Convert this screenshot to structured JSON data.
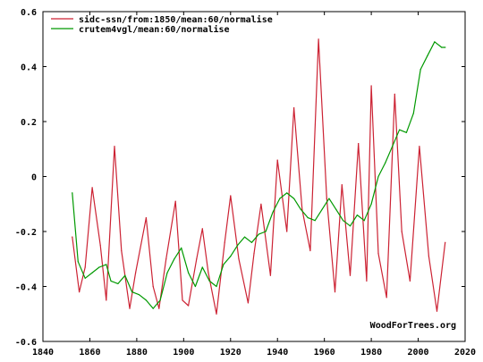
{
  "chart_data": {
    "type": "line",
    "title": "",
    "xlabel": "",
    "ylabel": "",
    "xlim": [
      1840,
      2020
    ],
    "ylim": [
      -0.6,
      0.6
    ],
    "x_ticks": [
      1840,
      1860,
      1880,
      1900,
      1920,
      1940,
      1960,
      1980,
      2000,
      2020
    ],
    "x_tick_labels": [
      "1840",
      "1860",
      "1880",
      "1900",
      "1920",
      "1940",
      "1960",
      "1980",
      "2000",
      "2020"
    ],
    "y_ticks": [
      -0.6,
      -0.4,
      -0.2,
      0,
      0.2,
      0.4,
      0.6
    ],
    "y_tick_labels": [
      "-0.6",
      "-0.4",
      "-0.2",
      "0",
      "0.2",
      "0.4",
      "0.6"
    ],
    "grid": false,
    "legend_position": "top-left",
    "credit": "WoodForTrees.org",
    "series": [
      {
        "name": "sidc-ssn/from:1850/mean:60/normalise",
        "color": "#cc2233",
        "x": [
          1852.5,
          1855.5,
          1858,
          1861,
          1864.5,
          1867,
          1870.5,
          1873.5,
          1877,
          1879.5,
          1884,
          1887,
          1889.5,
          1892.5,
          1896.5,
          1899.5,
          1902,
          1905.5,
          1908,
          1910.5,
          1914,
          1917.5,
          1920,
          1923.5,
          1927.5,
          1930,
          1933,
          1937,
          1940,
          1944,
          1947,
          1950.5,
          1954,
          1957.5,
          1961,
          1964.5,
          1967.5,
          1971,
          1974.5,
          1978,
          1980,
          1983,
          1986.5,
          1990,
          1993,
          1996.5,
          2000.5,
          2004.5,
          2008,
          2011.5
        ],
        "y": [
          -0.22,
          -0.42,
          -0.33,
          -0.04,
          -0.25,
          -0.45,
          0.11,
          -0.27,
          -0.48,
          -0.35,
          -0.15,
          -0.4,
          -0.48,
          -0.3,
          -0.09,
          -0.45,
          -0.47,
          -0.3,
          -0.19,
          -0.35,
          -0.5,
          -0.24,
          -0.07,
          -0.3,
          -0.46,
          -0.28,
          -0.1,
          -0.36,
          0.06,
          -0.2,
          0.25,
          -0.12,
          -0.27,
          0.5,
          -0.08,
          -0.42,
          -0.03,
          -0.36,
          0.12,
          -0.38,
          0.33,
          -0.28,
          -0.44,
          0.3,
          -0.2,
          -0.38,
          0.11,
          -0.29,
          -0.49,
          -0.24
        ]
      },
      {
        "name": "crutem4vgl/mean:60/normalise",
        "color": "#009900",
        "x": [
          1852.5,
          1855,
          1858,
          1861,
          1864,
          1867,
          1869,
          1872,
          1875,
          1878,
          1881,
          1884,
          1887,
          1890,
          1893,
          1896,
          1899,
          1902,
          1905,
          1908,
          1911,
          1914,
          1917,
          1920,
          1923,
          1926,
          1929,
          1932,
          1935,
          1938,
          1941,
          1944,
          1947,
          1950,
          1953,
          1956,
          1959,
          1962,
          1965,
          1968,
          1971,
          1974,
          1977,
          1980,
          1983,
          1986,
          1989,
          1992,
          1995,
          1998,
          2001,
          2004,
          2007,
          2010,
          2011.5
        ],
        "y": [
          -0.06,
          -0.31,
          -0.37,
          -0.35,
          -0.33,
          -0.32,
          -0.38,
          -0.39,
          -0.36,
          -0.42,
          -0.43,
          -0.45,
          -0.48,
          -0.45,
          -0.35,
          -0.3,
          -0.26,
          -0.35,
          -0.4,
          -0.33,
          -0.38,
          -0.4,
          -0.32,
          -0.29,
          -0.25,
          -0.22,
          -0.24,
          -0.21,
          -0.2,
          -0.13,
          -0.08,
          -0.06,
          -0.08,
          -0.12,
          -0.15,
          -0.16,
          -0.12,
          -0.08,
          -0.12,
          -0.16,
          -0.18,
          -0.14,
          -0.16,
          -0.1,
          0.0,
          0.05,
          0.11,
          0.17,
          0.16,
          0.23,
          0.39,
          0.44,
          0.49,
          0.47,
          0.47
        ]
      }
    ]
  }
}
